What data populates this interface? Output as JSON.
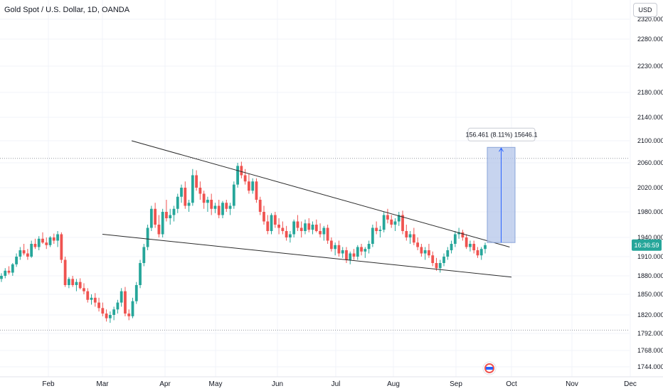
{
  "symbol_title": "Gold Spot / U.S. Dollar, 1D, OANDA",
  "currency_label": "USD",
  "price_label": "16:36:59",
  "measure_label": "156.461 (8.11%) 15646.1",
  "colors": {
    "background": "#ffffff",
    "grid": "#f0f3fa",
    "up": "#26a69a",
    "down": "#ef5350",
    "trendline": "#2a2a2a",
    "measure_fill": "#b4c6ea",
    "measure_stroke": "#2962ff",
    "price_label_bg": "#26a69a",
    "axis_text": "#131722"
  },
  "chart_data": {
    "type": "candlestick",
    "title": "Gold Spot / U.S. Dollar, 1D, OANDA",
    "currency": "USD",
    "y_ticks": [
      "2320.000",
      "2280.000",
      "2230.000",
      "2180.000",
      "2140.000",
      "2100.000",
      "2060.000",
      "2020.000",
      "1980.000",
      "1940.000",
      "1910.000",
      "1880.000",
      "1850.000",
      "1820.000",
      "1792.000",
      "1768.000",
      "1744.000"
    ],
    "x_ticks": [
      "Feb",
      "Mar",
      "Apr",
      "May",
      "Jun",
      "Jul",
      "Aug",
      "Sep",
      "Oct",
      "Nov",
      "Dec"
    ],
    "ohlc": [
      [
        1875,
        1884,
        1870,
        1880
      ],
      [
        1880,
        1892,
        1876,
        1888
      ],
      [
        1888,
        1895,
        1882,
        1885
      ],
      [
        1885,
        1900,
        1880,
        1898
      ],
      [
        1898,
        1915,
        1894,
        1910
      ],
      [
        1910,
        1925,
        1905,
        1920
      ],
      [
        1920,
        1930,
        1912,
        1915
      ],
      [
        1915,
        1922,
        1905,
        1910
      ],
      [
        1910,
        1935,
        1908,
        1930
      ],
      [
        1930,
        1938,
        1922,
        1925
      ],
      [
        1925,
        1942,
        1920,
        1938
      ],
      [
        1938,
        1948,
        1930,
        1932
      ],
      [
        1932,
        1940,
        1922,
        1928
      ],
      [
        1928,
        1942,
        1925,
        1940
      ],
      [
        1940,
        1946,
        1930,
        1935
      ],
      [
        1935,
        1950,
        1925,
        1945
      ],
      [
        1945,
        1948,
        1900,
        1905
      ],
      [
        1905,
        1910,
        1862,
        1865
      ],
      [
        1865,
        1878,
        1860,
        1875
      ],
      [
        1875,
        1880,
        1862,
        1865
      ],
      [
        1865,
        1875,
        1855,
        1870
      ],
      [
        1870,
        1876,
        1858,
        1860
      ],
      [
        1860,
        1868,
        1850,
        1855
      ],
      [
        1855,
        1860,
        1838,
        1842
      ],
      [
        1842,
        1850,
        1835,
        1845
      ],
      [
        1845,
        1852,
        1832,
        1838
      ],
      [
        1838,
        1845,
        1825,
        1830
      ],
      [
        1830,
        1838,
        1818,
        1822
      ],
      [
        1822,
        1828,
        1810,
        1815
      ],
      [
        1815,
        1825,
        1808,
        1820
      ],
      [
        1820,
        1832,
        1812,
        1828
      ],
      [
        1828,
        1842,
        1822,
        1838
      ],
      [
        1838,
        1860,
        1832,
        1855
      ],
      [
        1855,
        1862,
        1818,
        1822
      ],
      [
        1822,
        1828,
        1812,
        1818
      ],
      [
        1818,
        1845,
        1815,
        1840
      ],
      [
        1840,
        1870,
        1836,
        1865
      ],
      [
        1865,
        1905,
        1860,
        1900
      ],
      [
        1900,
        1930,
        1895,
        1925
      ],
      [
        1925,
        1960,
        1920,
        1955
      ],
      [
        1955,
        1990,
        1950,
        1985
      ],
      [
        1985,
        1995,
        1955,
        1960
      ],
      [
        1960,
        1975,
        1940,
        1945
      ],
      [
        1945,
        1985,
        1940,
        1980
      ],
      [
        1980,
        2000,
        1965,
        1970
      ],
      [
        1970,
        1985,
        1960,
        1975
      ],
      [
        1975,
        1990,
        1965,
        1985
      ],
      [
        1985,
        2010,
        1978,
        2005
      ],
      [
        2005,
        2025,
        1995,
        2020
      ],
      [
        2020,
        2030,
        1985,
        1990
      ],
      [
        1990,
        2000,
        1980,
        1995
      ],
      [
        1995,
        2050,
        1990,
        2040
      ],
      [
        2040,
        2048,
        2015,
        2020
      ],
      [
        2020,
        2030,
        2000,
        2010
      ],
      [
        2010,
        2015,
        1985,
        1995
      ],
      [
        1995,
        2005,
        1980,
        2000
      ],
      [
        2000,
        2010,
        1975,
        1985
      ],
      [
        1985,
        1995,
        1978,
        1990
      ],
      [
        1990,
        2000,
        1970,
        1975
      ],
      [
        1975,
        1998,
        1970,
        1995
      ],
      [
        1995,
        2000,
        1980,
        1985
      ],
      [
        1985,
        1995,
        1975,
        1990
      ],
      [
        1990,
        2030,
        1985,
        2025
      ],
      [
        2025,
        2060,
        2020,
        2055
      ],
      [
        2055,
        2062,
        2035,
        2040
      ],
      [
        2040,
        2050,
        2025,
        2030
      ],
      [
        2030,
        2042,
        2010,
        2015
      ],
      [
        2015,
        2035,
        2010,
        2030
      ],
      [
        2030,
        2035,
        1995,
        2000
      ],
      [
        2000,
        2005,
        1975,
        1980
      ],
      [
        1980,
        1990,
        1960,
        1965
      ],
      [
        1965,
        1975,
        1945,
        1950
      ],
      [
        1950,
        1978,
        1945,
        1975
      ],
      [
        1975,
        1980,
        1955,
        1960
      ],
      [
        1960,
        1970,
        1945,
        1955
      ],
      [
        1955,
        1965,
        1945,
        1950
      ],
      [
        1950,
        1958,
        1935,
        1940
      ],
      [
        1940,
        1950,
        1932,
        1945
      ],
      [
        1945,
        1968,
        1940,
        1965
      ],
      [
        1965,
        1975,
        1950,
        1955
      ],
      [
        1955,
        1965,
        1940,
        1950
      ],
      [
        1950,
        1968,
        1945,
        1962
      ],
      [
        1962,
        1970,
        1948,
        1952
      ],
      [
        1952,
        1965,
        1945,
        1960
      ],
      [
        1960,
        1968,
        1948,
        1950
      ],
      [
        1950,
        1962,
        1940,
        1945
      ],
      [
        1945,
        1958,
        1935,
        1955
      ],
      [
        1955,
        1960,
        1930,
        1935
      ],
      [
        1935,
        1940,
        1918,
        1922
      ],
      [
        1922,
        1932,
        1912,
        1928
      ],
      [
        1928,
        1935,
        1910,
        1915
      ],
      [
        1915,
        1925,
        1908,
        1920
      ],
      [
        1920,
        1925,
        1900,
        1905
      ],
      [
        1905,
        1918,
        1898,
        1915
      ],
      [
        1915,
        1922,
        1905,
        1910
      ],
      [
        1910,
        1928,
        1905,
        1925
      ],
      [
        1925,
        1930,
        1912,
        1918
      ],
      [
        1918,
        1925,
        1908,
        1922
      ],
      [
        1922,
        1935,
        1915,
        1930
      ],
      [
        1930,
        1960,
        1925,
        1955
      ],
      [
        1955,
        1965,
        1945,
        1950
      ],
      [
        1950,
        1958,
        1940,
        1952
      ],
      [
        1952,
        1980,
        1948,
        1975
      ],
      [
        1975,
        1985,
        1962,
        1968
      ],
      [
        1968,
        1975,
        1955,
        1960
      ],
      [
        1960,
        1970,
        1950,
        1965
      ],
      [
        1965,
        1980,
        1958,
        1975
      ],
      [
        1975,
        1982,
        1945,
        1950
      ],
      [
        1950,
        1960,
        1935,
        1940
      ],
      [
        1940,
        1950,
        1930,
        1945
      ],
      [
        1945,
        1955,
        1928,
        1932
      ],
      [
        1932,
        1940,
        1920,
        1925
      ],
      [
        1925,
        1930,
        1910,
        1915
      ],
      [
        1915,
        1925,
        1905,
        1920
      ],
      [
        1920,
        1930,
        1908,
        1912
      ],
      [
        1912,
        1918,
        1895,
        1900
      ],
      [
        1900,
        1908,
        1888,
        1892
      ],
      [
        1892,
        1905,
        1885,
        1900
      ],
      [
        1900,
        1915,
        1895,
        1910
      ],
      [
        1910,
        1925,
        1905,
        1920
      ],
      [
        1920,
        1935,
        1915,
        1930
      ],
      [
        1930,
        1950,
        1925,
        1945
      ],
      [
        1945,
        1955,
        1938,
        1948
      ],
      [
        1948,
        1952,
        1935,
        1940
      ],
      [
        1940,
        1945,
        1922,
        1925
      ],
      [
        1925,
        1935,
        1918,
        1930
      ],
      [
        1930,
        1935,
        1915,
        1920
      ],
      [
        1920,
        1925,
        1908,
        1912
      ],
      [
        1912,
        1925,
        1905,
        1922
      ],
      [
        1922,
        1932,
        1915,
        1928
      ]
    ],
    "trendline_upper": {
      "start": {
        "date": "Mar 15",
        "price": 2100
      },
      "end": {
        "date": "Sep 30",
        "price": 1925
      }
    },
    "trendline_lower": {
      "start": {
        "date": "Mar 1",
        "price": 1945
      },
      "end": {
        "date": "Oct 1",
        "price": 1878
      }
    },
    "reference_levels": [
      2068,
      1797
    ],
    "measure": {
      "from_price": 1932,
      "to_price": 2088,
      "change": "156.461",
      "percent": "8.11%",
      "value": "15646.1"
    }
  }
}
